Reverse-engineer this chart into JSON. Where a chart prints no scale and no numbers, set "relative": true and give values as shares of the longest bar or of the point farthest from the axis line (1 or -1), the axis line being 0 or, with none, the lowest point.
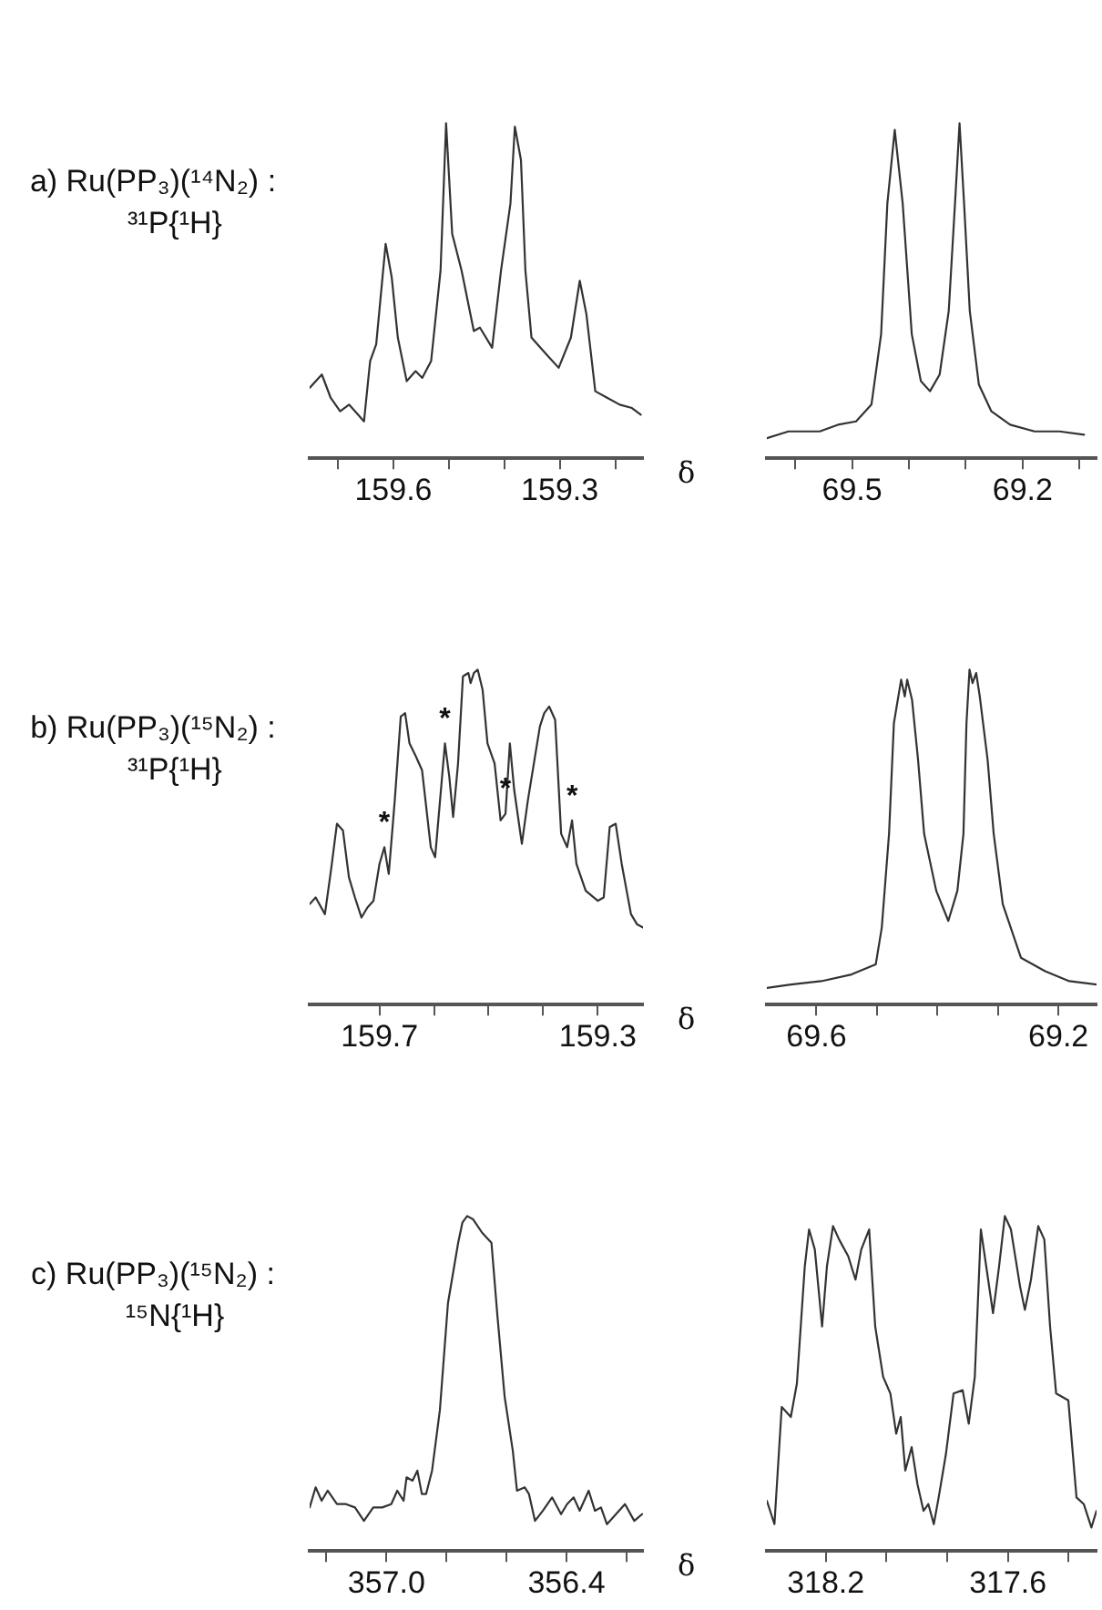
{
  "chart_data": [
    {
      "type": "line",
      "title": "a) Ru(PP₃)(¹⁴N₂) :",
      "subtitle": "³¹P{¹H}",
      "xlabel": "δ",
      "relative": true,
      "marker": "none",
      "xlim": [
        159.751,
        159.15
      ],
      "xticks": [
        {
          "value": 159.7,
          "label": null
        },
        159.6,
        {
          "value": 159.5,
          "label": null
        },
        {
          "value": 159.4,
          "label": null
        },
        159.3,
        {
          "value": 159.2,
          "label": null
        }
      ],
      "x": [
        159.751,
        159.729,
        159.713,
        159.696,
        159.68,
        159.669,
        159.653,
        159.642,
        159.631,
        159.614,
        159.603,
        159.592,
        159.576,
        159.56,
        159.548,
        159.532,
        159.515,
        159.505,
        159.494,
        159.477,
        159.455,
        159.444,
        159.422,
        159.406,
        159.389,
        159.381,
        159.37,
        159.362,
        159.351,
        159.324,
        159.302,
        159.28,
        159.264,
        159.252,
        159.236,
        159.214,
        159.192,
        159.17,
        159.154
      ],
      "series": [
        {
          "color": "#333333",
          "values": [
            0.21,
            0.25,
            0.18,
            0.14,
            0.16,
            0.14,
            0.11,
            0.29,
            0.34,
            0.64,
            0.54,
            0.36,
            0.23,
            0.26,
            0.24,
            0.29,
            0.56,
            1,
            0.67,
            0.56,
            0.38,
            0.39,
            0.33,
            0.56,
            0.76,
            0.99,
            0.89,
            0.56,
            0.36,
            0.31,
            0.27,
            0.36,
            0.53,
            0.43,
            0.2,
            0.18,
            0.16,
            0.15,
            0.13
          ]
        }
      ]
    },
    {
      "type": "line",
      "relative": true,
      "marker": "none",
      "xlim": [
        69.65,
        69.07
      ],
      "xticks": [
        {
          "value": 69.6,
          "label": null
        },
        69.5,
        {
          "value": 69.4,
          "label": null
        },
        {
          "value": 69.3,
          "label": null
        },
        69.2,
        {
          "value": 69.1,
          "label": null
        }
      ],
      "x": [
        69.65,
        69.612,
        69.557,
        69.525,
        69.493,
        69.466,
        69.449,
        69.438,
        69.425,
        69.411,
        69.395,
        69.379,
        69.363,
        69.346,
        69.33,
        69.319,
        69.311,
        69.303,
        69.293,
        69.277,
        69.255,
        69.222,
        69.179,
        69.135,
        69.092
      ],
      "series": [
        {
          "color": "#333333",
          "values": [
            0.06,
            0.08,
            0.08,
            0.1,
            0.11,
            0.16,
            0.37,
            0.76,
            0.98,
            0.76,
            0.37,
            0.23,
            0.2,
            0.25,
            0.44,
            0.76,
            1,
            0.76,
            0.44,
            0.22,
            0.14,
            0.1,
            0.08,
            0.08,
            0.07
          ]
        }
      ]
    },
    {
      "type": "line",
      "title": "b) Ru(PP₃)(¹⁵N₂) :",
      "subtitle": "³¹P{¹H}",
      "xlabel": "δ",
      "relative": true,
      "marker": "none",
      "xlim": [
        159.828,
        159.217
      ],
      "xticks": [
        159.7,
        {
          "value": 159.6,
          "label": null
        },
        {
          "value": 159.5,
          "label": null
        },
        {
          "value": 159.4,
          "label": null
        },
        159.3
      ],
      "x": [
        159.828,
        159.817,
        159.8,
        159.789,
        159.778,
        159.767,
        159.756,
        159.745,
        159.733,
        159.722,
        159.711,
        159.7,
        159.691,
        159.683,
        159.672,
        159.661,
        159.653,
        159.645,
        159.633,
        159.622,
        159.606,
        159.598,
        159.589,
        159.58,
        159.572,
        159.565,
        159.556,
        159.547,
        159.537,
        159.533,
        159.527,
        159.52,
        159.511,
        159.502,
        159.489,
        159.478,
        159.469,
        159.461,
        159.453,
        159.439,
        159.428,
        159.417,
        159.406,
        159.398,
        159.389,
        159.378,
        159.367,
        159.356,
        159.347,
        159.339,
        159.322,
        159.3,
        159.289,
        159.278,
        159.267,
        159.256,
        159.239,
        159.228,
        159.217
      ],
      "series": [
        {
          "color": "#333333",
          "values": [
            0.3,
            0.32,
            0.27,
            0.4,
            0.54,
            0.52,
            0.38,
            0.32,
            0.26,
            0.29,
            0.31,
            0.42,
            0.47,
            0.39,
            0.61,
            0.86,
            0.87,
            0.78,
            0.74,
            0.7,
            0.47,
            0.44,
            0.61,
            0.78,
            0.68,
            0.56,
            0.72,
            0.98,
            0.99,
            0.96,
            0.99,
            1,
            0.94,
            0.78,
            0.72,
            0.55,
            0.57,
            0.78,
            0.64,
            0.48,
            0.61,
            0.72,
            0.83,
            0.87,
            0.89,
            0.85,
            0.51,
            0.47,
            0.55,
            0.42,
            0.34,
            0.31,
            0.32,
            0.53,
            0.54,
            0.42,
            0.27,
            0.24,
            0.23
          ]
        }
      ],
      "annotations": [
        {
          "text": "*",
          "x": 159.691,
          "y": 0.47
        },
        {
          "text": "*",
          "x": 159.58,
          "y": 0.78
        },
        {
          "text": "*",
          "x": 159.469,
          "y": 0.57
        },
        {
          "text": "*",
          "x": 159.347,
          "y": 0.55
        }
      ]
    },
    {
      "type": "line",
      "relative": true,
      "marker": "none",
      "xlim": [
        69.682,
        69.137
      ],
      "xticks": [
        69.6,
        {
          "value": 69.5,
          "label": null
        },
        {
          "value": 69.4,
          "label": null
        },
        {
          "value": 69.3,
          "label": null
        },
        69.2
      ],
      "x": [
        69.682,
        69.642,
        69.592,
        69.542,
        69.502,
        69.492,
        69.48,
        69.472,
        69.46,
        69.454,
        69.45,
        69.442,
        69.432,
        69.422,
        69.402,
        69.382,
        69.367,
        69.357,
        69.352,
        69.347,
        69.342,
        69.336,
        69.33,
        69.317,
        69.307,
        69.292,
        69.262,
        69.222,
        69.182,
        69.137
      ],
      "series": [
        {
          "color": "#333333",
          "values": [
            0.05,
            0.06,
            0.07,
            0.09,
            0.12,
            0.23,
            0.51,
            0.84,
            0.97,
            0.92,
            0.97,
            0.91,
            0.73,
            0.51,
            0.34,
            0.25,
            0.34,
            0.51,
            0.84,
            1,
            0.96,
            0.99,
            0.92,
            0.73,
            0.51,
            0.3,
            0.14,
            0.1,
            0.07,
            0.06
          ]
        }
      ]
    },
    {
      "type": "line",
      "title": "c) Ru(PP₃)(¹⁵N₂) :",
      "subtitle": "¹⁵N{¹H}",
      "xlabel": "δ",
      "relative": true,
      "marker": "none",
      "xlim": [
        357.256,
        356.145
      ],
      "xticks": [
        {
          "value": 357.2,
          "label": null
        },
        {
          "value": 357,
          "label": "357.0"
        },
        {
          "value": 356.8,
          "label": null
        },
        {
          "value": 356.6,
          "label": null
        },
        356.4,
        {
          "value": 356.2,
          "label": null
        }
      ],
      "x": [
        357.256,
        357.236,
        357.216,
        357.196,
        357.165,
        357.135,
        357.105,
        357.075,
        357.044,
        357.014,
        356.984,
        356.964,
        356.943,
        356.933,
        356.913,
        356.897,
        356.882,
        356.868,
        356.848,
        356.822,
        356.795,
        356.761,
        356.747,
        356.731,
        356.711,
        356.681,
        356.65,
        356.63,
        356.606,
        356.579,
        356.565,
        356.539,
        356.525,
        356.505,
        356.479,
        356.448,
        356.418,
        356.398,
        356.376,
        356.356,
        356.326,
        356.305,
        356.285,
        356.265,
        356.235,
        356.205,
        356.174,
        356.148
      ],
      "series": [
        {
          "color": "#333333",
          "values": [
            0.13,
            0.19,
            0.15,
            0.18,
            0.14,
            0.14,
            0.13,
            0.09,
            0.13,
            0.13,
            0.14,
            0.18,
            0.15,
            0.22,
            0.21,
            0.24,
            0.17,
            0.17,
            0.24,
            0.42,
            0.74,
            0.92,
            0.98,
            1,
            0.99,
            0.95,
            0.92,
            0.7,
            0.46,
            0.3,
            0.18,
            0.19,
            0.17,
            0.09,
            0.12,
            0.16,
            0.11,
            0.14,
            0.16,
            0.12,
            0.18,
            0.12,
            0.13,
            0.08,
            0.11,
            0.14,
            0.09,
            0.11
          ]
        }
      ]
    },
    {
      "type": "line",
      "relative": true,
      "marker": "none",
      "xlim": [
        318.394,
        317.308
      ],
      "xticks": [
        318.2,
        {
          "value": 318,
          "label": null
        },
        {
          "value": 317.8,
          "label": null
        },
        317.6,
        {
          "value": 317.4,
          "label": null
        }
      ],
      "x": [
        318.394,
        318.369,
        318.345,
        318.315,
        318.295,
        318.269,
        318.255,
        318.236,
        318.212,
        318.196,
        318.176,
        318.156,
        318.126,
        318.102,
        318.083,
        318.057,
        318.037,
        318.011,
        317.987,
        317.968,
        317.953,
        317.938,
        317.917,
        317.898,
        317.878,
        317.862,
        317.844,
        317.828,
        317.804,
        317.779,
        317.749,
        317.729,
        317.709,
        317.689,
        317.665,
        317.649,
        317.629,
        317.61,
        317.59,
        317.56,
        317.544,
        317.524,
        317.5,
        317.48,
        317.461,
        317.441,
        317.421,
        317.401,
        317.374,
        317.35,
        317.325,
        317.308
      ],
      "series": [
        {
          "color": "#333333",
          "values": [
            0.15,
            0.08,
            0.43,
            0.4,
            0.5,
            0.85,
            0.96,
            0.9,
            0.67,
            0.85,
            0.97,
            0.93,
            0.88,
            0.81,
            0.9,
            0.96,
            0.67,
            0.52,
            0.47,
            0.35,
            0.4,
            0.24,
            0.31,
            0.2,
            0.12,
            0.14,
            0.08,
            0.16,
            0.29,
            0.47,
            0.48,
            0.38,
            0.52,
            0.96,
            0.81,
            0.71,
            0.85,
            1,
            0.96,
            0.79,
            0.72,
            0.81,
            0.97,
            0.93,
            0.67,
            0.47,
            0.46,
            0.45,
            0.16,
            0.14,
            0.07,
            0.12
          ]
        }
      ]
    }
  ]
}
